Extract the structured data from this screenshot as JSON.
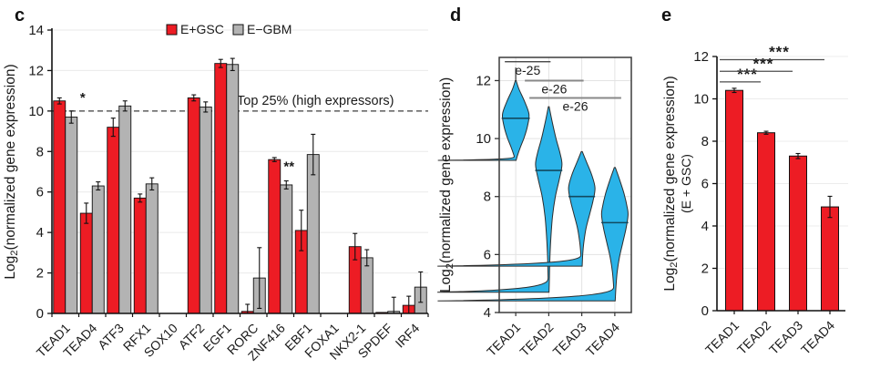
{
  "figure": {
    "panel_letters": {
      "c": "c",
      "d": "d",
      "e": "e"
    }
  },
  "chart_data": [
    {
      "panel": "c",
      "type": "bar",
      "ylabel": {
        "prefix": "Log",
        "sub": "2",
        "rest": "(normalized gene expression)"
      },
      "ylim": [
        0,
        14
      ],
      "yticks": [
        0,
        2,
        4,
        6,
        8,
        10,
        12,
        14
      ],
      "grid": true,
      "categories": [
        "TEAD1",
        "TEAD4",
        "ATF3",
        "RFX1",
        "SOX10",
        "ATF2",
        "EGF1",
        "RORC",
        "ZNF416",
        "EBF1",
        "FOXA1",
        "NKX2-1",
        "SPDEF",
        "IRF4"
      ],
      "series": [
        {
          "name": "E+GSC",
          "color": "#ed1c24",
          "values": [
            10.5,
            4.95,
            9.2,
            5.7,
            0,
            10.65,
            12.35,
            0.1,
            7.6,
            4.1,
            0,
            3.3,
            0.05,
            0.4
          ],
          "errors": [
            0.15,
            0.5,
            0.45,
            0.2,
            0,
            0.15,
            0.2,
            0.35,
            0.1,
            1.0,
            0,
            0.65,
            0,
            0.45
          ]
        },
        {
          "name": "E−GBM",
          "color": "#b3b3b3",
          "values": [
            9.7,
            6.3,
            10.25,
            6.4,
            0,
            10.2,
            12.3,
            1.75,
            6.35,
            7.85,
            0,
            2.75,
            0.1,
            1.3
          ],
          "errors": [
            0.3,
            0.2,
            0.25,
            0.3,
            0,
            0.25,
            0.3,
            1.5,
            0.2,
            1.0,
            0,
            0.4,
            0.7,
            0.75
          ]
        }
      ],
      "threshold": {
        "value": 10,
        "label": "Top 25% (high expressors)",
        "style": "dashed"
      },
      "annotations": [
        {
          "category": "TEAD1",
          "series": "E−GBM",
          "text": "*",
          "value": 10.45,
          "placement": "right-of-bar"
        },
        {
          "category": "ZNF416",
          "series": "E−GBM",
          "text": "**",
          "value": 7.05,
          "placement": "above-bar"
        }
      ],
      "legend": {
        "position": "top",
        "items": [
          {
            "label": "E+GSC",
            "color": "#ed1c24"
          },
          {
            "label": "E−GBM",
            "color": "#b3b3b3"
          }
        ]
      }
    },
    {
      "panel": "d",
      "type": "violin",
      "ylabel": {
        "prefix": "Log",
        "sub": "2",
        "rest": "(normalized gene expression)"
      },
      "ylim": [
        4,
        12.8
      ],
      "yticks": [
        4,
        6,
        8,
        10,
        12
      ],
      "grid": true,
      "color": "#2ab3e8",
      "categories": [
        "TEAD1",
        "TEAD2",
        "TEAD3",
        "TEAD4"
      ],
      "violins": [
        {
          "median": 10.7,
          "min": 9.25,
          "max": 12.0,
          "whisker_max": 12.45,
          "shape": [
            [
              12.0,
              0.03
            ],
            [
              11.7,
              0.25
            ],
            [
              11.3,
              0.65
            ],
            [
              10.85,
              1.0
            ],
            [
              10.45,
              0.9
            ],
            [
              10.05,
              0.65
            ],
            [
              9.7,
              0.35
            ],
            [
              9.4,
              0.12
            ],
            [
              9.25,
              0.03
            ]
          ]
        },
        {
          "median": 8.9,
          "min": 4.7,
          "max": 11.1,
          "shape": [
            [
              11.1,
              0.03
            ],
            [
              10.6,
              0.25
            ],
            [
              10.0,
              0.55
            ],
            [
              9.5,
              0.85
            ],
            [
              9.1,
              1.0
            ],
            [
              8.6,
              0.8
            ],
            [
              8.0,
              0.5
            ],
            [
              7.3,
              0.28
            ],
            [
              6.5,
              0.15
            ],
            [
              5.8,
              0.08
            ],
            [
              5.2,
              0.05
            ],
            [
              4.7,
              0.02
            ]
          ]
        },
        {
          "median": 8.0,
          "min": 5.6,
          "max": 9.55,
          "shape": [
            [
              9.55,
              0.04
            ],
            [
              9.2,
              0.35
            ],
            [
              8.75,
              0.75
            ],
            [
              8.3,
              1.0
            ],
            [
              7.85,
              0.85
            ],
            [
              7.4,
              0.6
            ],
            [
              6.9,
              0.32
            ],
            [
              6.4,
              0.15
            ],
            [
              6.0,
              0.07
            ],
            [
              5.6,
              0.03
            ]
          ]
        },
        {
          "median": 7.1,
          "min": 4.4,
          "max": 9.0,
          "shape": [
            [
              9.0,
              0.04
            ],
            [
              8.6,
              0.35
            ],
            [
              8.1,
              0.7
            ],
            [
              7.6,
              0.95
            ],
            [
              7.35,
              1.0
            ],
            [
              6.9,
              0.85
            ],
            [
              6.4,
              0.6
            ],
            [
              5.9,
              0.35
            ],
            [
              5.4,
              0.18
            ],
            [
              4.9,
              0.09
            ],
            [
              4.4,
              0.03
            ]
          ]
        }
      ],
      "comparisons": [
        {
          "from": "TEAD1",
          "to": "TEAD2",
          "label": "e-25",
          "y": 12.65
        },
        {
          "from": "TEAD1",
          "to": "TEAD3",
          "label": "e-26",
          "y": 12.0
        },
        {
          "from": "TEAD1",
          "to": "TEAD4",
          "label": "e-26",
          "y": 11.4
        }
      ]
    },
    {
      "panel": "e",
      "type": "bar",
      "ylabel": {
        "prefix": "Log",
        "sub": "2",
        "rest": "(normalized gene expression)",
        "line2": "(E + GSC)"
      },
      "ylim": [
        0,
        12
      ],
      "yticks": [
        0,
        2,
        4,
        6,
        8,
        10,
        12
      ],
      "grid": true,
      "color": "#ed1c24",
      "categories": [
        "TEAD1",
        "TEAD2",
        "TEAD3",
        "TEAD4"
      ],
      "values": [
        10.4,
        8.4,
        7.3,
        4.9
      ],
      "errors": [
        0.1,
        0.07,
        0.12,
        0.5
      ],
      "comparisons": [
        {
          "from": "TEAD1",
          "to": "TEAD2",
          "label": "***",
          "y": 10.8
        },
        {
          "from": "TEAD1",
          "to": "TEAD3",
          "label": "***",
          "y": 11.3
        },
        {
          "from": "TEAD1",
          "to": "TEAD4",
          "label": "***",
          "y": 11.85
        }
      ]
    }
  ]
}
